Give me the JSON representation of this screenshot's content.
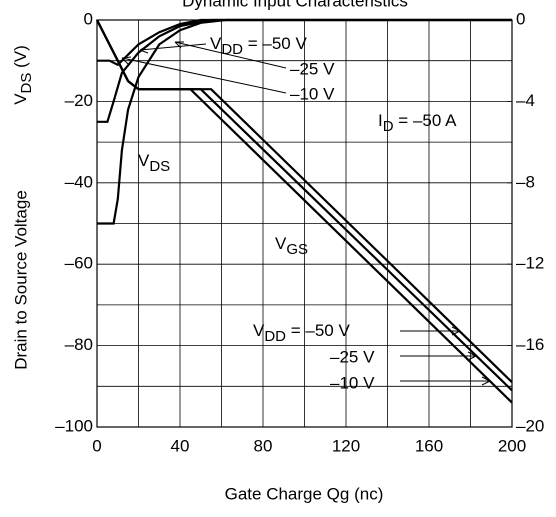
{
  "chart_data": {
    "type": "line",
    "title": "Dynamic Input Characteristics",
    "y_label": "Drain to Source Voltage",
    "y_label_unit": {
      "text": "V",
      "sub": "DS",
      "rest": "  (V)"
    },
    "x_label": "Gate Charge    Qg   (nc)",
    "xlim": [
      0,
      200
    ],
    "xticks": [
      0,
      40,
      80,
      120,
      160,
      200
    ],
    "x_grid": [
      20,
      60,
      100,
      140,
      180
    ],
    "ylim": [
      -100,
      0
    ],
    "yticks": [
      0,
      {
        "value": -20,
        "label": "–20"
      },
      {
        "value": -40,
        "label": "–40"
      },
      {
        "value": -60,
        "label": "–60"
      },
      {
        "value": -80,
        "label": "–80"
      },
      {
        "value": -100,
        "label": "–100"
      }
    ],
    "y_grid": [
      -10,
      -30,
      -50,
      -70,
      -90
    ],
    "y2lim": [
      -20,
      0
    ],
    "y2ticks": [
      0,
      {
        "value": -4,
        "label": "–4"
      },
      {
        "value": -8,
        "label": "–8"
      },
      {
        "value": -12,
        "label": "–12"
      },
      {
        "value": -16,
        "label": "–16"
      },
      {
        "value": -20,
        "label": "–20"
      }
    ],
    "grid": true,
    "color": "#000000",
    "series": [
      {
        "axis": "y",
        "x": [
          0,
          6,
          10,
          14,
          20,
          30,
          40,
          50,
          200
        ],
        "values": [
          -10,
          -10,
          -11,
          -9,
          -6,
          -3,
          -1,
          0,
          0
        ]
      },
      {
        "axis": "y",
        "x": [
          0,
          5,
          8,
          12,
          20,
          30,
          40,
          55,
          200
        ],
        "values": [
          -25,
          -25,
          -20,
          -13,
          -8,
          -4,
          -1.5,
          0,
          0
        ]
      },
      {
        "axis": "y",
        "x": [
          0,
          8,
          10,
          12,
          15,
          20,
          30,
          40,
          50,
          62,
          200
        ],
        "values": [
          -50,
          -50,
          -44,
          -32,
          -22,
          -14,
          -6,
          -2.5,
          -0.7,
          0,
          0
        ]
      },
      {
        "axis": "y2",
        "x": [
          0,
          5,
          10,
          15,
          20,
          45,
          200
        ],
        "values": [
          0,
          -1,
          -2,
          -3,
          -3.4,
          -3.4,
          -18.8
        ]
      },
      {
        "axis": "y2",
        "x": [
          0,
          5,
          10,
          15,
          20,
          50,
          200
        ],
        "values": [
          0,
          -1,
          -2,
          -3,
          -3.4,
          -3.4,
          -18.2
        ]
      },
      {
        "axis": "y2",
        "x": [
          0,
          5,
          10,
          15,
          20,
          55,
          200
        ],
        "values": [
          0,
          -1,
          -2,
          -3,
          -3.4,
          -3.4,
          -17.8
        ]
      }
    ],
    "annotations": [
      {
        "text": "V",
        "sub": "DD",
        "rest": " = –50 V"
      },
      {
        "text": "–25 V"
      },
      {
        "text": "–10 V"
      },
      {
        "text": "I",
        "sub": "D",
        "rest": " = –50 A"
      },
      {
        "text": "V",
        "sub": "DS"
      },
      {
        "text": "V",
        "sub": "GS"
      },
      {
        "text": "V",
        "sub": "DD",
        "rest": " = –50 V"
      },
      {
        "text": "–25 V"
      },
      {
        "text": "–10 V"
      }
    ]
  }
}
